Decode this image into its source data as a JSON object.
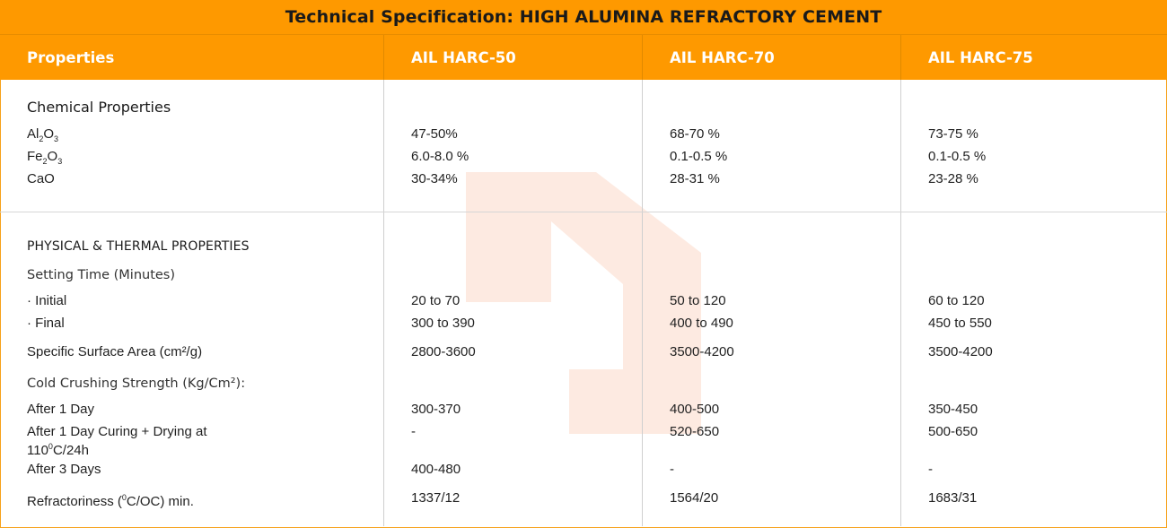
{
  "title": "Technical Specification: HIGH ALUMINA REFRACTORY CEMENT",
  "colors": {
    "accent": "#fe9900",
    "header_text": "#ffffff",
    "watermark": "#fde9df"
  },
  "watermark_icon": "company-logo-watermark",
  "columns": [
    "Properties",
    "AIL HARC-50",
    "AIL HARC-70",
    "AIL HARC-75"
  ],
  "chemical": {
    "heading": "Chemical Properties",
    "rows": [
      {
        "label_main": "Al",
        "s1": "2",
        "label_mid": "O",
        "s2": "3",
        "values": [
          "47-50%",
          "68-70 %",
          "73-75 %"
        ]
      },
      {
        "label_main": "Fe",
        "s1": "2",
        "label_mid": "O",
        "s2": "3",
        "values": [
          "6.0-8.0 %",
          "0.1-0.5 %",
          "0.1-0.5 %"
        ]
      },
      {
        "label": "CaO",
        "values": [
          "30-34%",
          "28-31 %",
          "23-28 %"
        ]
      }
    ]
  },
  "physical": {
    "heading": "PHYSICAL & THERMAL PROPERTIES",
    "setting_time": "Setting Time (Minutes)",
    "initial": {
      "label": "· Initial",
      "values": [
        "20 to 70",
        "50 to 120",
        "60 to 120"
      ]
    },
    "final": {
      "label": "· Final",
      "values": [
        "300 to 390",
        "400 to 490",
        "450 to 550"
      ]
    },
    "ssa": {
      "label": "Specific Surface Area (cm²/g)",
      "values": [
        "2800-3600",
        "3500-4200",
        "3500-4200"
      ]
    },
    "ccs": "Cold Crushing Strength (Kg/Cm²):",
    "day1": {
      "label": "After 1 Day",
      "values": [
        "300-370",
        "400-500",
        "350-450"
      ]
    },
    "curing": {
      "label_a": "After 1 Day Curing + Drying at 110",
      "label_sup": "0",
      "label_b": "C/24h",
      "values": [
        "-",
        "520-650",
        "500-650"
      ]
    },
    "day3": {
      "label": "After 3 Days",
      "values": [
        "400-480",
        "-",
        "-"
      ]
    },
    "refr": {
      "label_a": "Refractoriness (",
      "label_sup": "0",
      "label_b": "C/OC) min.",
      "values": [
        "1337/12",
        "1564/20",
        "1683/31"
      ]
    }
  }
}
